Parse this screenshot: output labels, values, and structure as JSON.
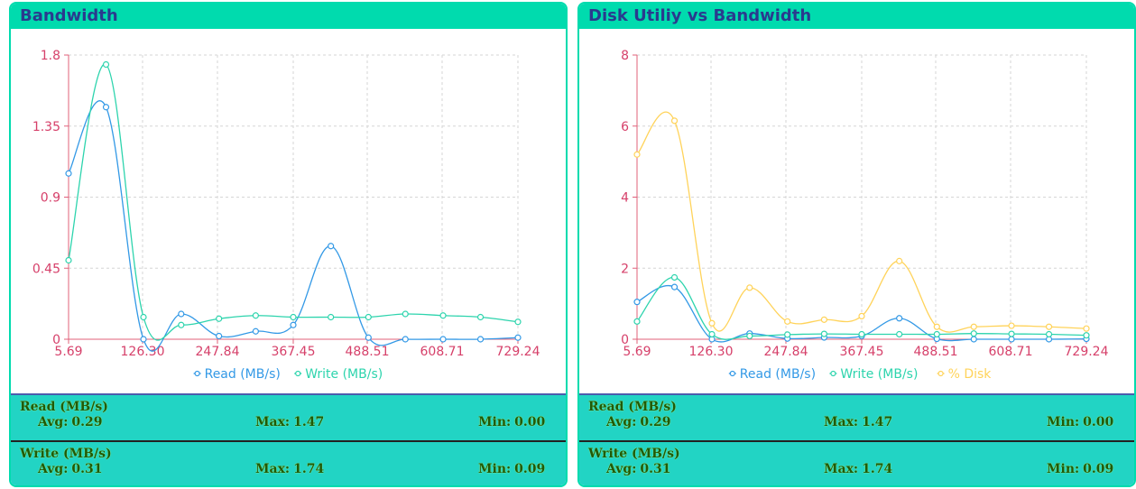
{
  "panels": [
    {
      "title": "Bandwidth",
      "read_stats": {
        "title": "Read (MB/s)",
        "avg_label": "Avg:",
        "avg": "0.29",
        "max_label": "Max:",
        "max": "1.47",
        "min_label": "Min:",
        "min": "0.00"
      },
      "write_stats": {
        "title": "Write (MB/s)",
        "avg_label": "Avg:",
        "avg": "0.31",
        "max_label": "Max:",
        "max": "1.74",
        "min_label": "Min:",
        "min": "0.09"
      }
    },
    {
      "title": "Disk Utiliy vs Bandwidth",
      "read_stats": {
        "title": "Read (MB/s)",
        "avg_label": "Avg:",
        "avg": "0.29",
        "max_label": "Max:",
        "max": "1.47",
        "min_label": "Min:",
        "min": "0.00"
      },
      "write_stats": {
        "title": "Write (MB/s)",
        "avg_label": "Avg:",
        "avg": "0.31",
        "max_label": "Max:",
        "max": "1.74",
        "min_label": "Min:",
        "min": "0.09"
      }
    }
  ],
  "chart_data": [
    {
      "type": "line",
      "x_ticks": [
        "5.69",
        "126.30",
        "247.84",
        "367.45",
        "488.51",
        "608.71",
        "729.24"
      ],
      "y_ticks": [
        "0",
        "0.45",
        "0.9",
        "1.35",
        "1.8"
      ],
      "ylim": [
        0,
        1.8
      ],
      "grid": true,
      "legend": "bottom",
      "x": [
        5.69,
        66,
        126.3,
        187,
        247.84,
        307,
        367.45,
        428,
        488.51,
        548,
        608.71,
        669,
        729.24
      ],
      "series": [
        {
          "name": "Read (MB/s)",
          "color": "#3399e6",
          "values": [
            1.05,
            1.47,
            0.0,
            0.16,
            0.02,
            0.05,
            0.09,
            0.59,
            0.01,
            0.0,
            0.0,
            0.0,
            0.01
          ]
        },
        {
          "name": "Write (MB/s)",
          "color": "#2dd4ad",
          "values": [
            0.5,
            1.74,
            0.14,
            0.09,
            0.13,
            0.15,
            0.14,
            0.14,
            0.14,
            0.16,
            0.15,
            0.14,
            0.11
          ]
        }
      ]
    },
    {
      "type": "line",
      "x_ticks": [
        "5.69",
        "126.30",
        "247.84",
        "367.45",
        "488.51",
        "608.71",
        "729.24"
      ],
      "y_ticks": [
        "0",
        "2",
        "4",
        "6",
        "8"
      ],
      "ylim": [
        0,
        8
      ],
      "grid": true,
      "legend": "bottom",
      "x": [
        5.69,
        66,
        126.3,
        187,
        247.84,
        307,
        367.45,
        428,
        488.51,
        548,
        608.71,
        669,
        729.24
      ],
      "series": [
        {
          "name": "Read (MB/s)",
          "color": "#3399e6",
          "values": [
            1.05,
            1.47,
            0.0,
            0.16,
            0.02,
            0.05,
            0.09,
            0.59,
            0.01,
            0.0,
            0.0,
            0.0,
            0.01
          ]
        },
        {
          "name": "Write (MB/s)",
          "color": "#2dd4ad",
          "values": [
            0.5,
            1.74,
            0.14,
            0.09,
            0.13,
            0.15,
            0.14,
            0.14,
            0.14,
            0.16,
            0.15,
            0.14,
            0.11
          ]
        },
        {
          "name": "% Disk",
          "color": "#ffd35a",
          "values": [
            5.2,
            6.15,
            0.45,
            1.45,
            0.5,
            0.55,
            0.65,
            2.2,
            0.35,
            0.35,
            0.38,
            0.35,
            0.3
          ]
        }
      ]
    }
  ]
}
